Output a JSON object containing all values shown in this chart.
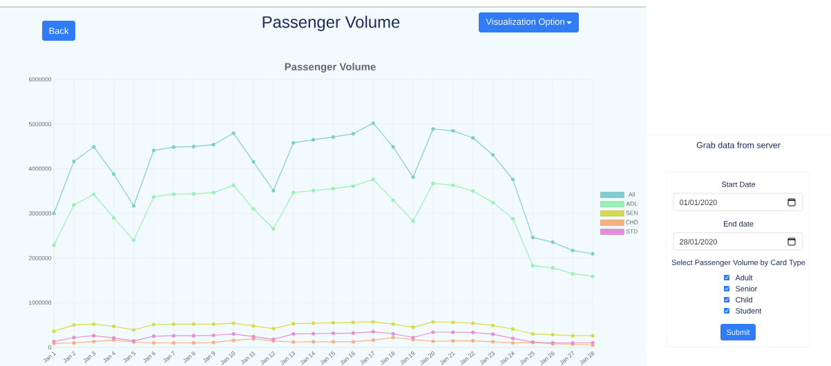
{
  "chart_data": [
    {
      "type": "line",
      "title": "Passenger Volume",
      "subtitle": "Passenger Volume",
      "annotations": [
        "Back",
        "Visualization Option"
      ],
      "categories": [
        "Jan 1",
        "Jan 2",
        "Jan 3",
        "Jan 4",
        "Jan 5",
        "Jan 6",
        "Jan 7",
        "Jan 8",
        "Jan 9",
        "Jan 10",
        "Jan 11",
        "Jan 12",
        "Jan 13",
        "Jan 14",
        "Jan 15",
        "Jan 16",
        "Jan 17",
        "Jan 18",
        "Jan 19",
        "Jan 20",
        "Jan 21",
        "Jan 22",
        "Jan 23",
        "Jan 24",
        "Jan 25",
        "Jan 26",
        "Jan 27",
        "Jan 28"
      ],
      "series": [
        {
          "name": "All",
          "color": "#7fcdd0",
          "values": [
            3000000,
            4165000,
            4490000,
            3880000,
            3170000,
            4410000,
            4485000,
            4495000,
            4540000,
            4795000,
            4155000,
            3510000,
            4580000,
            4650000,
            4710000,
            4785000,
            5020000,
            4490000,
            3810000,
            4890000,
            4850000,
            4690000,
            4310000,
            3760000,
            2460000,
            2355000,
            2170000,
            2095000
          ]
        },
        {
          "name": "ADL",
          "color": "#98f0b4",
          "values": [
            2290000,
            3190000,
            3425000,
            2900000,
            2400000,
            3370000,
            3430000,
            3440000,
            3465000,
            3630000,
            3100000,
            2655000,
            3465000,
            3510000,
            3555000,
            3610000,
            3760000,
            3295000,
            2830000,
            3670000,
            3630000,
            3500000,
            3245000,
            2880000,
            1830000,
            1780000,
            1650000,
            1590000
          ]
        },
        {
          "name": "SEN",
          "color": "#d4dc4a",
          "values": [
            360000,
            500000,
            520000,
            470000,
            390000,
            510000,
            520000,
            520000,
            520000,
            540000,
            480000,
            420000,
            530000,
            540000,
            550000,
            560000,
            570000,
            520000,
            450000,
            570000,
            560000,
            540000,
            490000,
            410000,
            300000,
            285000,
            260000,
            260000
          ]
        },
        {
          "name": "CHD",
          "color": "#f9b07c",
          "values": [
            90000,
            100000,
            130000,
            165000,
            120000,
            100000,
            100000,
            100000,
            110000,
            155000,
            190000,
            145000,
            120000,
            125000,
            125000,
            125000,
            160000,
            220000,
            175000,
            135000,
            145000,
            145000,
            125000,
            100000,
            110000,
            80000,
            70000,
            50000
          ]
        },
        {
          "name": "STD",
          "color": "#e38fd6",
          "values": [
            130000,
            220000,
            260000,
            210000,
            145000,
            250000,
            260000,
            260000,
            270000,
            300000,
            240000,
            180000,
            300000,
            305000,
            315000,
            320000,
            350000,
            305000,
            220000,
            340000,
            340000,
            335000,
            295000,
            200000,
            120000,
            100000,
            100000,
            100000
          ]
        }
      ],
      "ylim": [
        0,
        6000000
      ],
      "yticks": [
        0,
        1000000,
        2000000,
        3000000,
        4000000,
        5000000,
        6000000
      ],
      "grid": true,
      "legend": "right",
      "marker": "circle"
    },
    {
      "type": "other",
      "title": "Grab data from server",
      "annotations": [
        "Start Date",
        "01/01/2020",
        "End date",
        "28/01/2020",
        "Select Passenger Volume by Card Type",
        "Adult",
        "Senior",
        "Child",
        "Student",
        "Submit"
      ]
    }
  ]
}
